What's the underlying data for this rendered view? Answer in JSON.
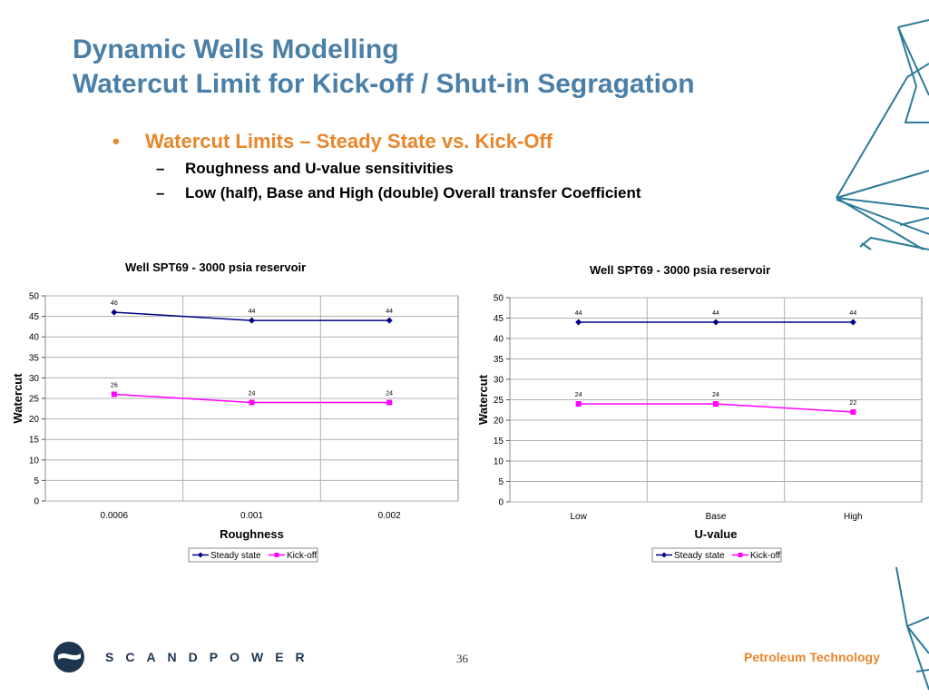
{
  "slide": {
    "title_line1": "Dynamic Wells Modelling",
    "title_line2": "Watercut Limit for Kick-off / Shut-in Segragation",
    "bullet_marker": "•",
    "bullet": "Watercut Limits – Steady State vs. Kick-Off",
    "sub_marker": "–",
    "sub1": "Roughness and U-value sensitivities",
    "sub2": "Low (half), Base and High (double) Overall transfer Coefficient",
    "page_number": "36",
    "brand": "SCANDPOWER",
    "tagline": "Petroleum Technology"
  },
  "colors": {
    "title": "#4a7fa8",
    "bullet": "#e8862a",
    "steady_state": "#000080",
    "kick_off": "#ff00ff",
    "brand": "#1e3550",
    "decoration": "#2b7a99"
  },
  "chart_data": [
    {
      "type": "line",
      "title": "Well SPT69 - 3000 psia reservoir",
      "categories": [
        "0.0006",
        "0.001",
        "0.002"
      ],
      "xlabel": "Roughness",
      "ylabel": "Watercut",
      "ylim": [
        0,
        50
      ],
      "yticks": [
        "0",
        "5",
        "10",
        "15",
        "20",
        "25",
        "30",
        "35",
        "40",
        "45",
        "50"
      ],
      "grid": true,
      "legend": "bottom",
      "series": [
        {
          "name": "Steady state",
          "values": [
            46,
            44,
            44
          ]
        },
        {
          "name": "Kick-off",
          "values": [
            26,
            24,
            24
          ]
        }
      ]
    },
    {
      "type": "line",
      "title": "Well SPT69 - 3000 psia reservoir",
      "categories": [
        "Low",
        "Base",
        "High"
      ],
      "xlabel": "U-value",
      "ylabel": "Watercut",
      "ylim": [
        0,
        50
      ],
      "yticks": [
        "0",
        "5",
        "10",
        "15",
        "20",
        "25",
        "30",
        "35",
        "40",
        "45",
        "50"
      ],
      "grid": true,
      "legend": "bottom",
      "series": [
        {
          "name": "Steady state",
          "values": [
            44,
            44,
            44
          ]
        },
        {
          "name": "Kick-off",
          "values": [
            24,
            24,
            22
          ]
        }
      ]
    }
  ]
}
